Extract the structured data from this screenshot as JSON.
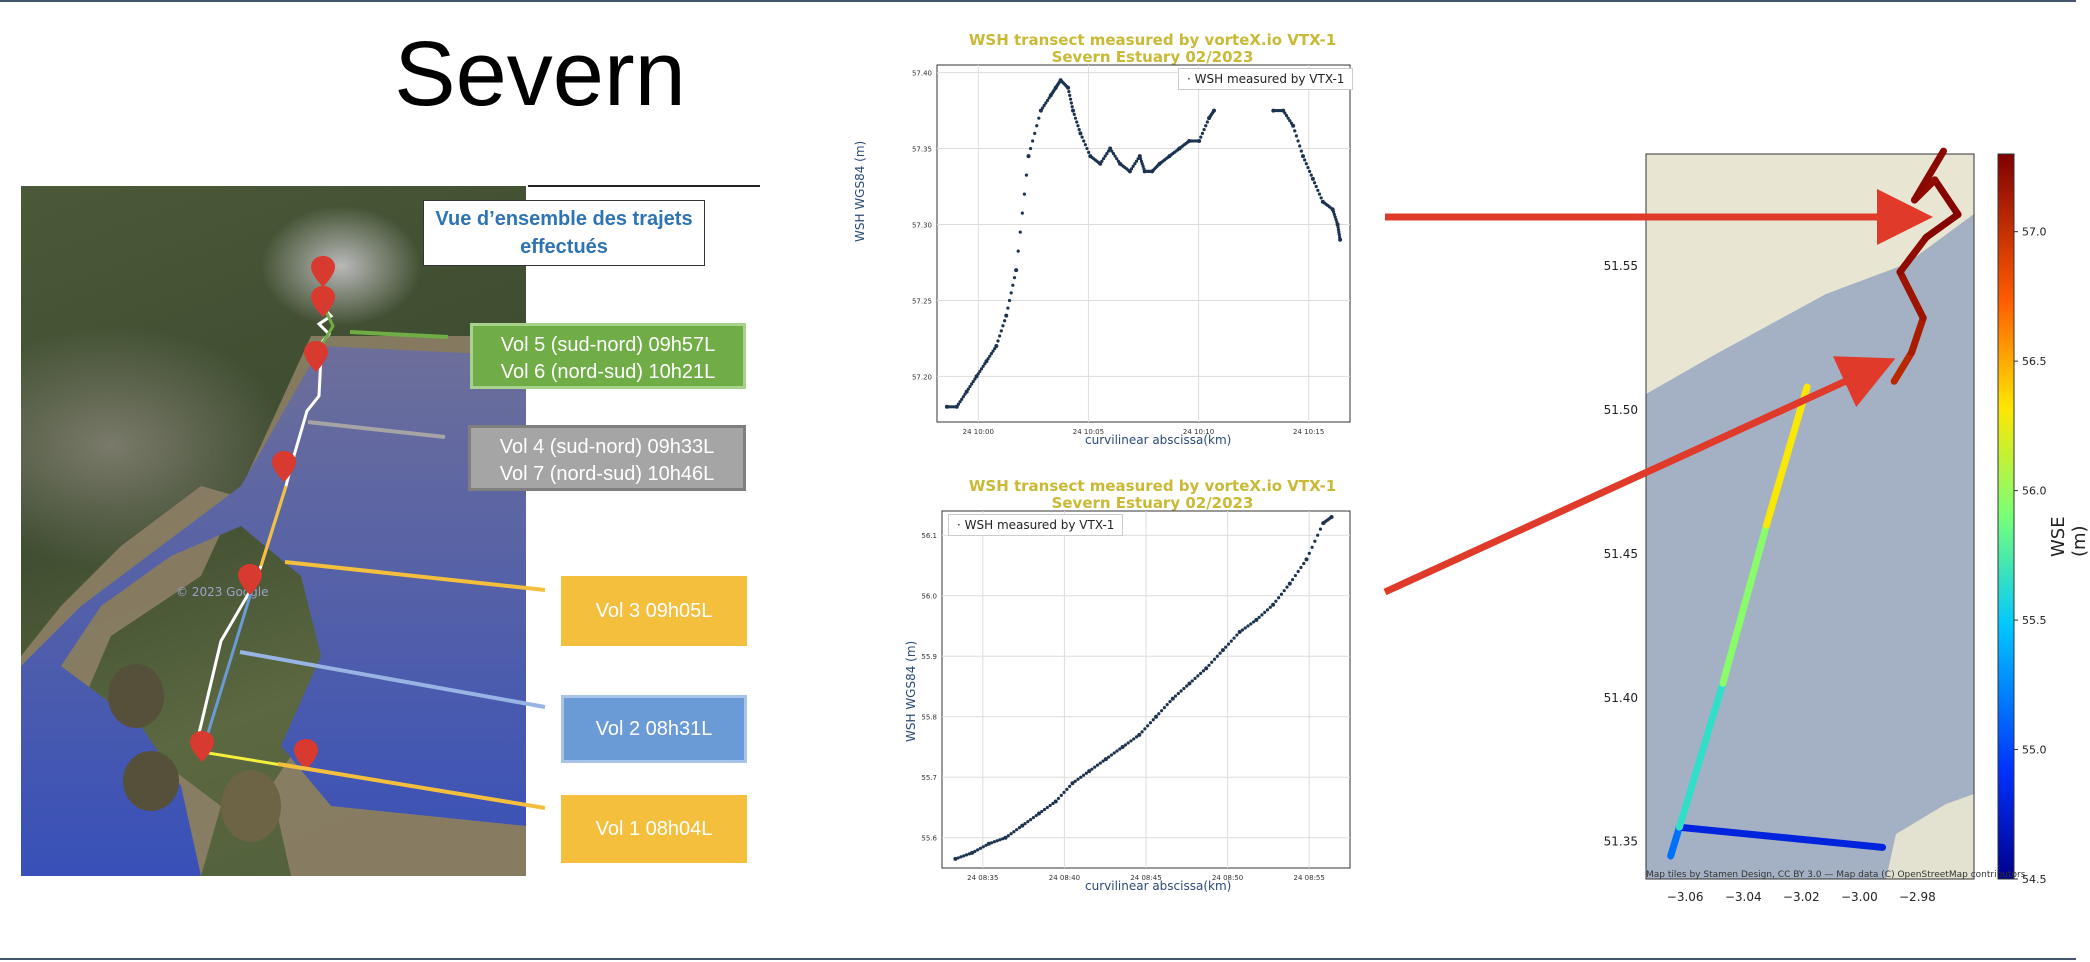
{
  "slide": {
    "title": "Severn",
    "overview_label": "Vue d’ensemble des trajets effectués"
  },
  "map_left": {
    "watermark": "© 2023 Google",
    "flights": [
      {
        "line1": "Vol 5 (sud-nord) 09h57L",
        "line2": "Vol 6 (nord-sud) 10h21L",
        "color": "#70ad47"
      },
      {
        "line1": "Vol 4 (sud-nord) 09h33L",
        "line2": "Vol 7 (nord-sud) 10h46L",
        "color": "#a5a5a5"
      },
      {
        "line1": "Vol 3 09h05L",
        "line2": "",
        "color": "#f4bf3d"
      },
      {
        "line1": "Vol 2 08h31L",
        "line2": "",
        "color": "#6b9bd6"
      },
      {
        "line1": "Vol 1 08h04L",
        "line2": "",
        "color": "#f4bf3d"
      }
    ]
  },
  "chart_data": [
    {
      "type": "scatter",
      "title": "WSH transect measured by vorteX.io VTX-1",
      "subtitle": "Severn Estuary 02/2023",
      "xlabel": "curvilinear abscissa(km)",
      "ylabel": "WSH WGS84 (m)",
      "legend": "WSH measured by VTX-1",
      "legend_position": "top-right",
      "xticks": [
        "24 10:00",
        "24 10:05",
        "24 10:10",
        "24 10:15"
      ],
      "xlim": [
        -1.2,
        15.5
      ],
      "ylim": [
        57.17,
        57.405
      ],
      "yticks": [
        "57.20",
        "57.25",
        "57.30",
        "57.35",
        "57.40"
      ],
      "ytick_values": [
        57.2,
        57.25,
        57.3,
        57.35,
        57.4
      ],
      "x": [
        -0.8,
        -0.4,
        0.0,
        0.4,
        0.8,
        1.2,
        1.6,
        2.0,
        2.5,
        3.0,
        3.4,
        3.6,
        3.8,
        4.1,
        4.3,
        4.6,
        5.0,
        5.4,
        5.8,
        6.2,
        6.6,
        7.0,
        7.2,
        7.5,
        7.8,
        8.2,
        8.6,
        9.0,
        9.4,
        9.8,
        10.0,
        12.4,
        12.8,
        13.2,
        13.6,
        14.0,
        14.4,
        14.8,
        15.0,
        15.1
      ],
      "y": [
        57.18,
        57.18,
        57.19,
        57.2,
        57.21,
        57.22,
        57.24,
        57.27,
        57.345,
        57.375,
        57.385,
        57.39,
        57.395,
        57.39,
        57.375,
        57.36,
        57.345,
        57.34,
        57.35,
        57.34,
        57.335,
        57.345,
        57.335,
        57.335,
        57.34,
        57.345,
        57.35,
        57.355,
        57.355,
        57.37,
        57.375,
        57.375,
        57.375,
        57.365,
        57.345,
        57.33,
        57.315,
        57.31,
        57.3,
        57.29
      ],
      "grid": true
    },
    {
      "type": "scatter",
      "title": "WSH transect measured by vorteX.io VTX-1",
      "subtitle": "Severn Estuary 02/2023",
      "xlabel": "curvilinear abscissa(km)",
      "ylabel": "WSH WGS84 (m)",
      "legend": "WSH measured by VTX-1",
      "legend_position": "top-left",
      "xticks": [
        "24 08:35",
        "24 08:40",
        "24 08:45",
        "24 08:50",
        "24 08:55"
      ],
      "xlim": [
        -1.8,
        22.6
      ],
      "ylim": [
        55.55,
        56.14
      ],
      "yticks": [
        "55.6",
        "55.7",
        "55.8",
        "55.9",
        "56.0",
        "56.1"
      ],
      "ytick_values": [
        55.6,
        55.7,
        55.8,
        55.9,
        56.0,
        56.1
      ],
      "x": [
        -1.0,
        0,
        1,
        2,
        3,
        4,
        5,
        6,
        7,
        8,
        9,
        10,
        11,
        12,
        13,
        14,
        15,
        16,
        17,
        18,
        19,
        20,
        21,
        21.5
      ],
      "y": [
        55.565,
        55.575,
        55.59,
        55.6,
        55.62,
        55.64,
        55.66,
        55.69,
        55.71,
        55.73,
        55.75,
        55.77,
        55.8,
        55.83,
        55.855,
        55.88,
        55.91,
        55.94,
        55.96,
        55.985,
        56.02,
        56.06,
        56.12,
        56.13
      ],
      "grid": true
    },
    {
      "type": "line",
      "subtype": "map-track",
      "xlabel": "",
      "ylabel": "",
      "xticks": [
        "−3.06",
        "−3.04",
        "−3.02",
        "−3.00",
        "−2.98"
      ],
      "xtick_values": [
        -3.06,
        -3.04,
        -3.02,
        -3.0,
        -2.98
      ],
      "yticks": [
        "51.35",
        "51.40",
        "51.45",
        "51.50",
        "51.55"
      ],
      "ytick_values": [
        51.35,
        51.4,
        51.45,
        51.5,
        51.55
      ],
      "xlim": [
        -3.0735,
        -2.9605
      ],
      "ylim": [
        51.337,
        51.589
      ],
      "colorbar": {
        "label": "WSE (m)",
        "ticks": [
          "54.5",
          "55.0",
          "55.5",
          "56.0",
          "56.5",
          "57.0"
        ],
        "tick_values": [
          54.5,
          55.0,
          55.5,
          56.0,
          56.5,
          57.0
        ],
        "range": [
          54.5,
          57.3
        ]
      },
      "attribution": "Map tiles by Stamen Design, CC BY 3.0 — Map data (C) OpenStreetMap contributors",
      "tracks": [
        {
          "lon": [
            -3.065,
            -3.062,
            -2.992
          ],
          "lat": [
            51.345,
            51.355,
            51.348
          ],
          "wse": [
            55.3,
            55.0,
            54.6
          ]
        },
        {
          "lon": [
            -3.062,
            -3.047,
            -3.032,
            -3.018
          ],
          "lat": [
            51.355,
            51.405,
            51.46,
            51.508
          ],
          "wse": [
            55.5,
            55.8,
            56.1,
            56.5
          ]
        },
        {
          "lon": [
            -2.988,
            -2.982,
            -2.978,
            -2.986,
            -2.977,
            -2.966,
            -2.974,
            -2.981,
            -2.971
          ],
          "lat": [
            51.51,
            51.52,
            51.532,
            51.548,
            51.56,
            51.568,
            51.58,
            51.573,
            51.59
          ],
          "wse": [
            57.0,
            57.1,
            57.15,
            57.2,
            57.25,
            57.3,
            57.25,
            57.2,
            57.3
          ]
        }
      ]
    }
  ]
}
